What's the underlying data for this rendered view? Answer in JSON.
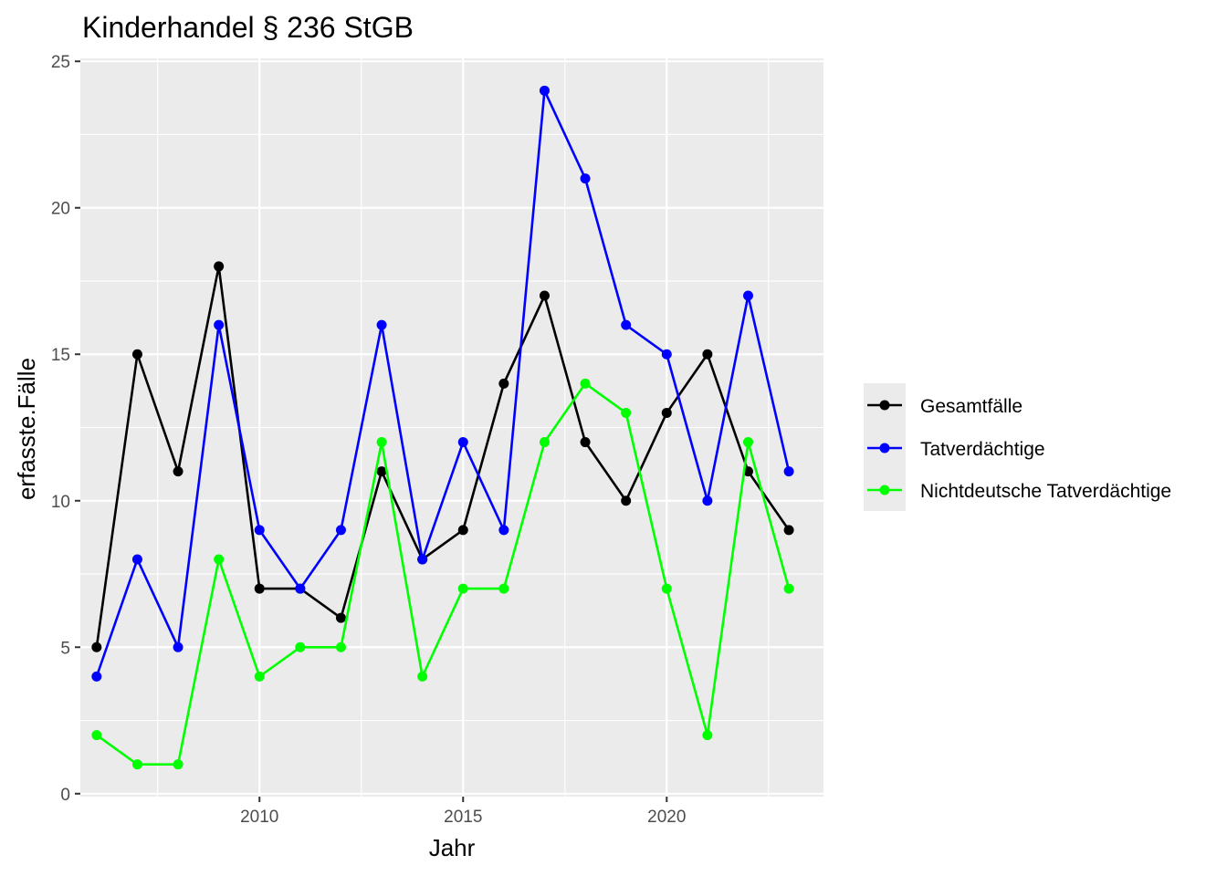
{
  "chart_data": {
    "type": "line",
    "title": "Kinderhandel § 236 StGB",
    "xlabel": "Jahr",
    "ylabel": "erfasste.Fälle",
    "x": [
      2006,
      2007,
      2008,
      2009,
      2010,
      2011,
      2012,
      2013,
      2014,
      2015,
      2016,
      2017,
      2018,
      2019,
      2020,
      2021,
      2022,
      2023
    ],
    "xlim": [
      2005.6,
      2023.85
    ],
    "ylim": [
      -0.1,
      25.1
    ],
    "x_ticks": [
      2010,
      2015,
      2020
    ],
    "y_ticks": [
      0,
      5,
      10,
      15,
      20,
      25
    ],
    "grid": true,
    "legend_position": "right",
    "series": [
      {
        "name": "Gesamtfälle",
        "color": "#000000",
        "values": [
          5,
          15,
          11,
          18,
          7,
          7,
          6,
          11,
          8,
          9,
          14,
          17,
          12,
          10,
          13,
          15,
          11,
          9
        ]
      },
      {
        "name": "Tatverdächtige",
        "color": "#0000ff",
        "values": [
          4,
          8,
          5,
          16,
          9,
          7,
          9,
          16,
          8,
          12,
          9,
          24,
          21,
          16,
          15,
          10,
          17,
          11
        ]
      },
      {
        "name": "Nichtdeutsche Tatverdächtige",
        "color": "#00ff00",
        "values": [
          2,
          1,
          1,
          8,
          4,
          5,
          5,
          12,
          4,
          7,
          7,
          12,
          14,
          13,
          7,
          2,
          12,
          7
        ]
      }
    ]
  }
}
